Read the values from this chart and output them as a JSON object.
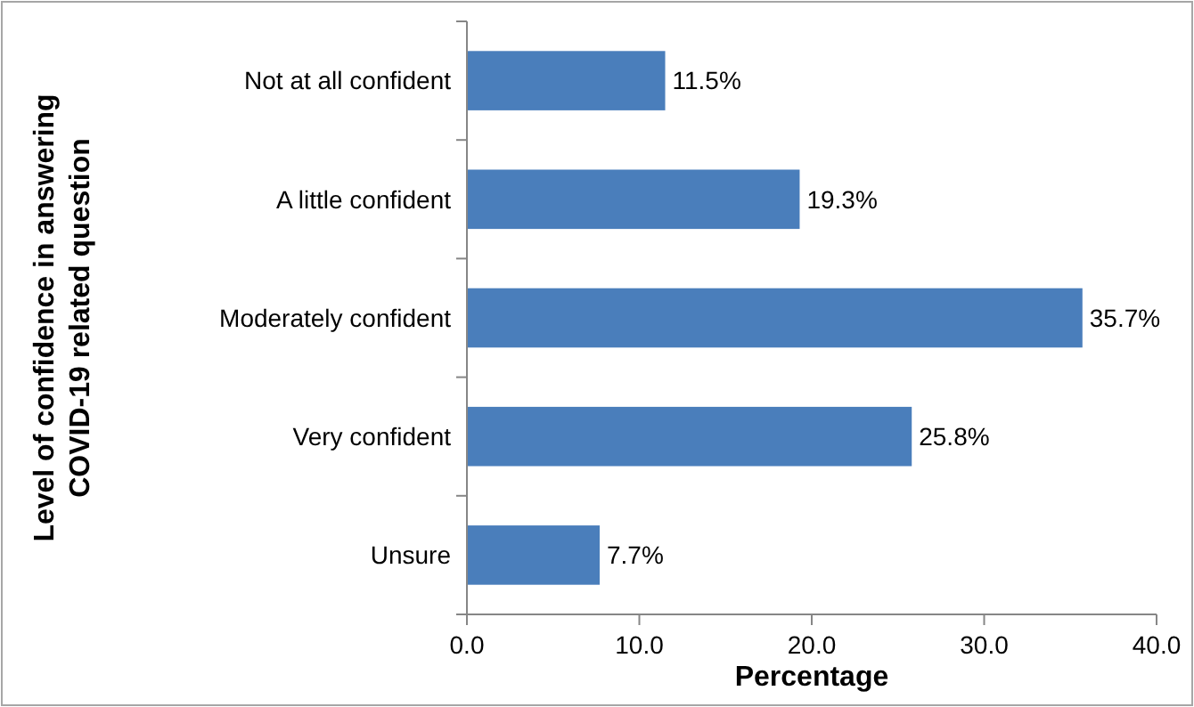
{
  "chart_data": {
    "type": "bar",
    "orientation": "horizontal",
    "xlabel": "Percentage",
    "ylabel": "Level of confidence in answering\nCOVID-19 related question",
    "categories": [
      "Not at all confident",
      "A little confident",
      "Moderately confident",
      "Very confident",
      "Unsure"
    ],
    "values": [
      11.5,
      19.3,
      35.7,
      25.8,
      7.7
    ],
    "value_labels": [
      "11.5%",
      "19.3%",
      "35.7%",
      "25.8%",
      "7.7%"
    ],
    "color": "#4a7ebb",
    "xlim": [
      0,
      40
    ],
    "xticks": [
      {
        "value": 0,
        "label": "0.0"
      },
      {
        "value": 10,
        "label": "10.0"
      },
      {
        "value": 20,
        "label": "20.0"
      },
      {
        "value": 30,
        "label": "30.0"
      },
      {
        "value": 40,
        "label": "40.0"
      }
    ],
    "grid": false
  }
}
